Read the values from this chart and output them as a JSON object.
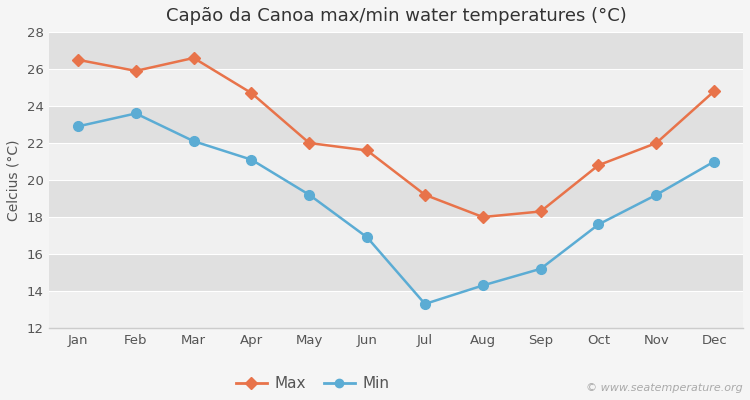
{
  "months": [
    "Jan",
    "Feb",
    "Mar",
    "Apr",
    "May",
    "Jun",
    "Jul",
    "Aug",
    "Sep",
    "Oct",
    "Nov",
    "Dec"
  ],
  "max_temps": [
    26.5,
    25.9,
    26.6,
    24.7,
    22.0,
    21.6,
    19.2,
    18.0,
    18.3,
    20.8,
    22.0,
    24.8
  ],
  "min_temps": [
    22.9,
    23.6,
    22.1,
    21.1,
    19.2,
    16.9,
    13.3,
    14.3,
    15.2,
    17.6,
    19.2,
    21.0
  ],
  "max_color": "#E8734A",
  "min_color": "#5BACD4",
  "title": "Capão da Canoa max/min water temperatures (°C)",
  "ylabel": "Celcius (°C)",
  "ylim": [
    12,
    28
  ],
  "yticks": [
    12,
    14,
    16,
    18,
    20,
    22,
    24,
    26,
    28
  ],
  "band_color_light": "#f0f0f0",
  "band_color_dark": "#e0e0e0",
  "fig_bg": "#f5f5f5",
  "plot_bg": "#ffffff",
  "watermark": "© www.seatemperature.org",
  "title_fontsize": 13,
  "axis_fontsize": 10,
  "tick_fontsize": 9.5,
  "watermark_fontsize": 8
}
